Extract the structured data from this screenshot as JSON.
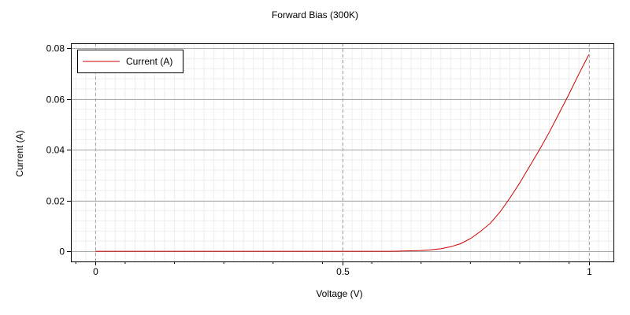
{
  "chart_data": {
    "type": "line",
    "title": "Forward Bias (300K)",
    "xlabel": "Voltage (V)",
    "ylabel": "Current (A)",
    "xlim": [
      -0.05,
      1.05
    ],
    "ylim": [
      -0.004,
      0.082
    ],
    "xticks": [
      0,
      0.5,
      1
    ],
    "xtick_labels": [
      "0",
      "0.5",
      "1"
    ],
    "yticks": [
      0,
      0.02,
      0.04,
      0.06,
      0.08
    ],
    "ytick_labels": [
      "0",
      "0.02",
      "0.04",
      "0.06",
      "0.08"
    ],
    "grid": true,
    "legend_position": "top-left",
    "series": [
      {
        "name": "Current (A)",
        "color": "#cc0000",
        "x": [
          0,
          0.1,
          0.2,
          0.3,
          0.4,
          0.5,
          0.6,
          0.62,
          0.64,
          0.66,
          0.68,
          0.7,
          0.72,
          0.74,
          0.76,
          0.78,
          0.8,
          0.82,
          0.84,
          0.86,
          0.88,
          0.9,
          0.92,
          0.94,
          0.96,
          0.98,
          1.0
        ],
        "y": [
          0,
          0,
          0,
          0,
          0,
          0,
          0,
          0.0001,
          0.0002,
          0.0003,
          0.0006,
          0.001,
          0.0018,
          0.003,
          0.005,
          0.0078,
          0.011,
          0.0155,
          0.021,
          0.027,
          0.0335,
          0.04,
          0.047,
          0.0545,
          0.062,
          0.07,
          0.0775
        ]
      }
    ]
  }
}
